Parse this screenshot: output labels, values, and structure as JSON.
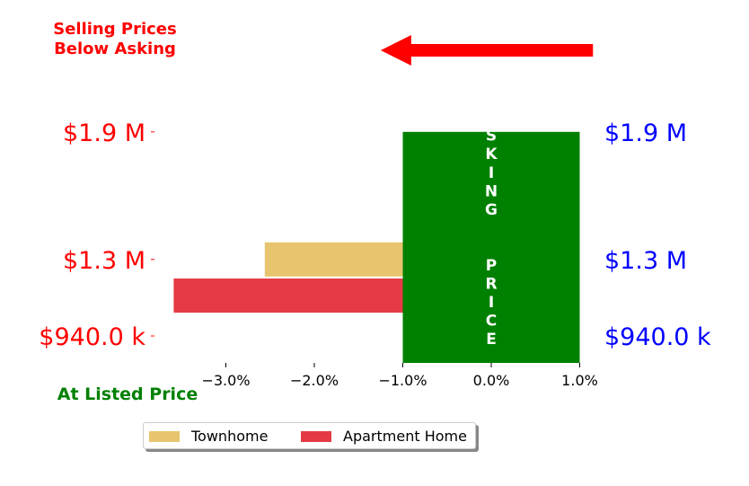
{
  "annotations": {
    "top_left": "Selling Prices\nBelow Asking",
    "bottom_left": "At Listed Price",
    "center_box": "ASKING  PRICE"
  },
  "colors": {
    "townhome": "#e8c46e",
    "apartment": "#e53a45",
    "asking_box": "#008000",
    "arrow": "#ff0000",
    "left_ticks": "#ff0000",
    "right_ticks": "#0000ff",
    "bottom_label": "#008000"
  },
  "icons": {
    "arrow": "left-arrow-icon"
  },
  "chart_data": {
    "type": "bar",
    "orientation": "horizontal",
    "xlim": [
      -0.04,
      0.01
    ],
    "x_ticks": [
      -0.03,
      -0.02,
      -0.01,
      0.0,
      0.01
    ],
    "x_tick_labels": [
      "−3.0%",
      "−2.0%",
      "−1.0%",
      "0.0%",
      "1.0%"
    ],
    "ylim": [
      890000,
      2000000
    ],
    "y_ticks": [
      940000,
      1300000,
      1900000
    ],
    "y_tick_labels_left": [
      "$940.0 k",
      "$1.3 M",
      "$1.9 M"
    ],
    "y_tick_labels_right": [
      "$940.0 k",
      "$1.3 M",
      "$1.9 M"
    ],
    "series": [
      {
        "name": "Townhome",
        "y": 1300000,
        "value": -0.0256
      },
      {
        "name": "Apartment Home",
        "y": 1130000,
        "value": -0.0359
      }
    ],
    "asking_price_band": {
      "x_start": -0.01,
      "x_end": 0.01,
      "y_start": 790000,
      "y_end": 1900000
    },
    "arrow_range": [
      0.0115,
      -0.0125
    ],
    "legend": {
      "placement": "bottom-center",
      "ncol": 2,
      "entries": [
        "Townhome",
        "Apartment Home"
      ]
    },
    "grid": false
  }
}
